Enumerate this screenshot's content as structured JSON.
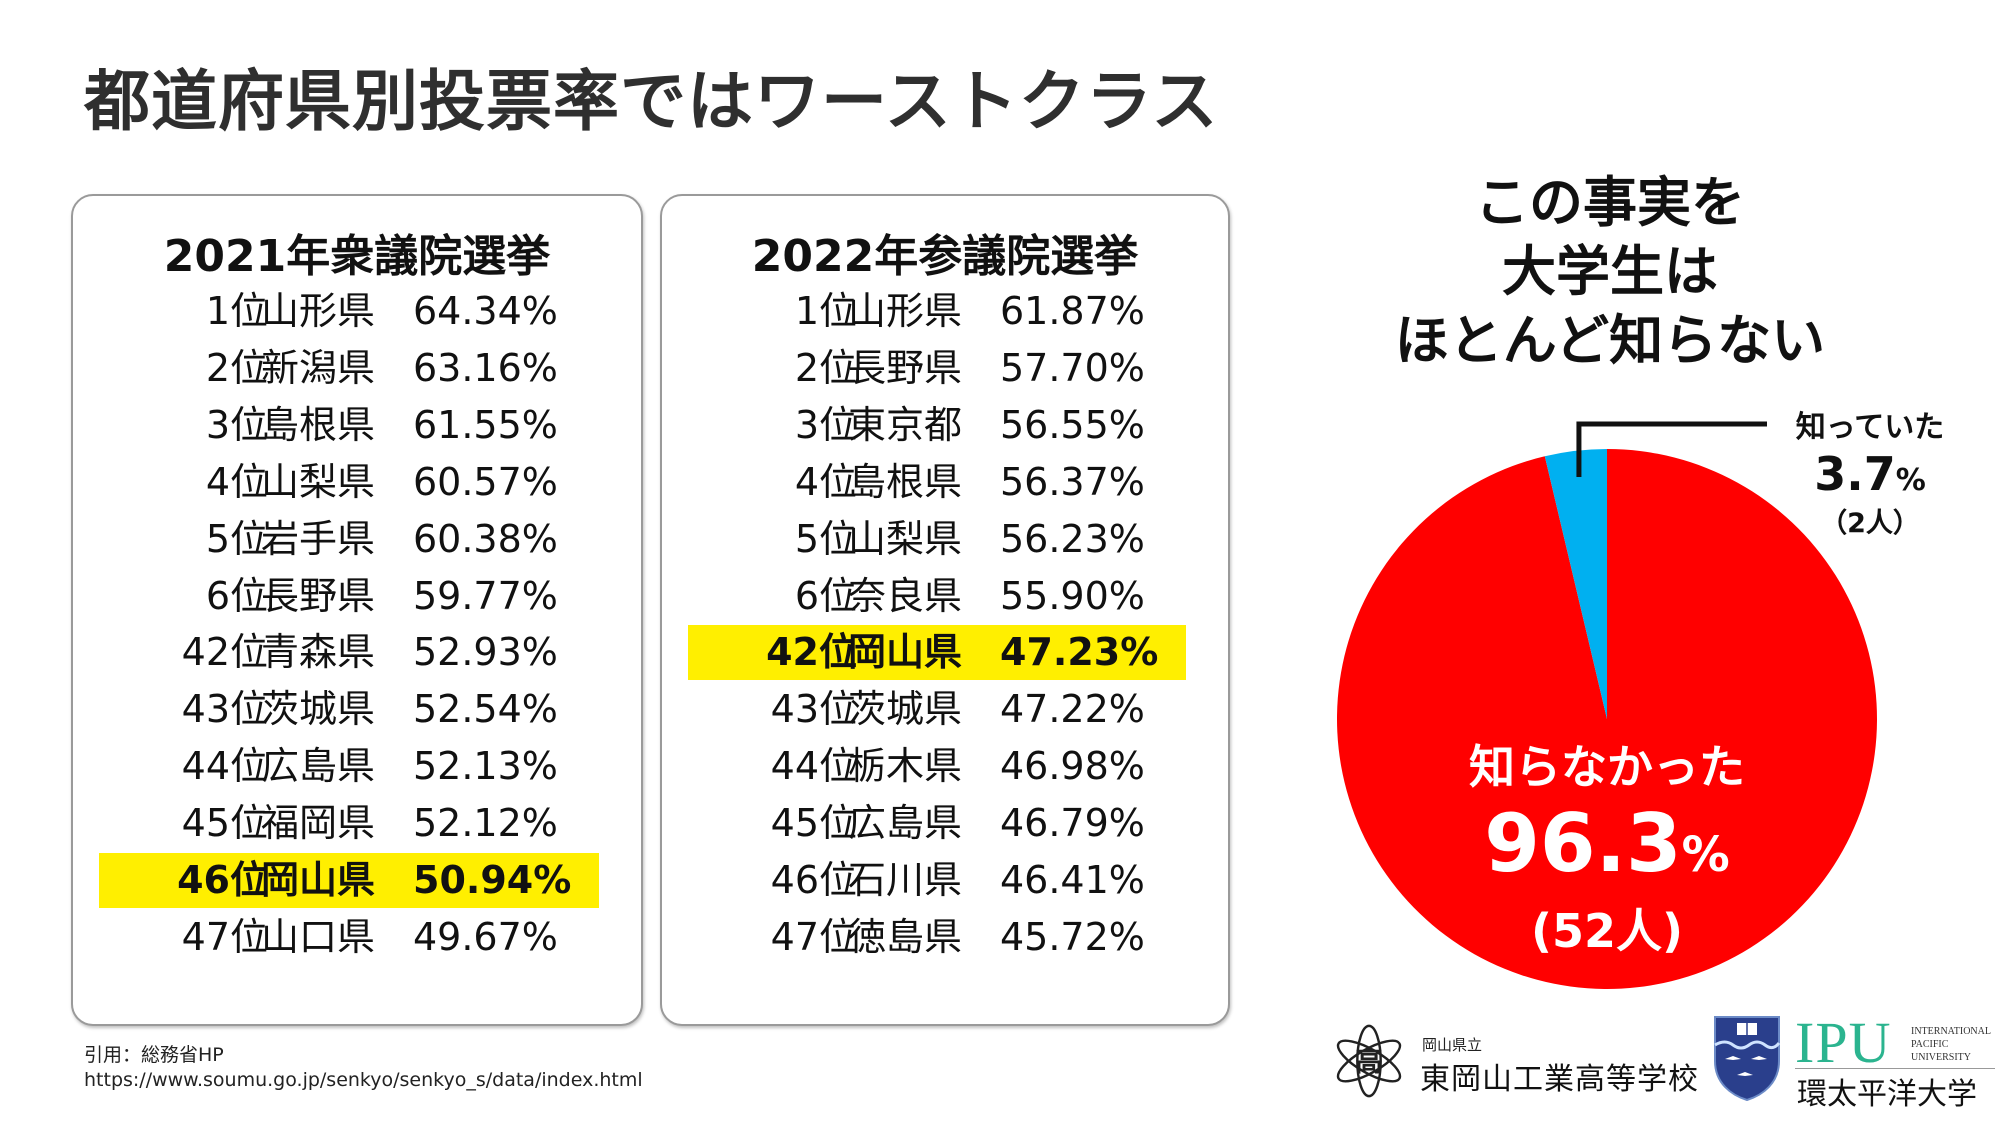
{
  "slide": {
    "title": "都道府県別投票率ではワーストクラス",
    "source_line1": "引用：総務省HP",
    "source_line2": "https://www.soumu.go.jp/senkyo/senkyo_s/data/index.html"
  },
  "tables": [
    {
      "title": "2021年衆議院選挙",
      "top": [
        {
          "rank": "1位",
          "pref": "山形県",
          "pct": "64.34%"
        },
        {
          "rank": "2位",
          "pref": "新潟県",
          "pct": "63.16%"
        },
        {
          "rank": "3位",
          "pref": "島根県",
          "pct": "61.55%"
        },
        {
          "rank": "4位",
          "pref": "山梨県",
          "pct": "60.57%"
        },
        {
          "rank": "5位",
          "pref": "岩手県",
          "pct": "60.38%"
        },
        {
          "rank": "6位",
          "pref": "長野県",
          "pct": "59.77%"
        }
      ],
      "bottom": [
        {
          "rank": "42位",
          "pref": "青森県",
          "pct": "52.93%",
          "highlight": false
        },
        {
          "rank": "43位",
          "pref": "茨城県",
          "pct": "52.54%",
          "highlight": false
        },
        {
          "rank": "44位",
          "pref": "広島県",
          "pct": "52.13%",
          "highlight": false
        },
        {
          "rank": "45位",
          "pref": "福岡県",
          "pct": "52.12%",
          "highlight": false
        },
        {
          "rank": "46位",
          "pref": "岡山県",
          "pct": "50.94%",
          "highlight": true
        },
        {
          "rank": "47位",
          "pref": "山口県",
          "pct": "49.67%",
          "highlight": false
        }
      ]
    },
    {
      "title": "2022年参議院選挙",
      "top": [
        {
          "rank": "1位",
          "pref": "山形県",
          "pct": "61.87%"
        },
        {
          "rank": "2位",
          "pref": "長野県",
          "pct": "57.70%"
        },
        {
          "rank": "3位",
          "pref": "東京都",
          "pct": "56.55%"
        },
        {
          "rank": "4位",
          "pref": "島根県",
          "pct": "56.37%"
        },
        {
          "rank": "5位",
          "pref": "山梨県",
          "pct": "56.23%"
        },
        {
          "rank": "6位",
          "pref": "奈良県",
          "pct": "55.90%"
        }
      ],
      "bottom": [
        {
          "rank": "42位",
          "pref": "岡山県",
          "pct": "47.23%",
          "highlight": true
        },
        {
          "rank": "43位",
          "pref": "茨城県",
          "pct": "47.22%",
          "highlight": false
        },
        {
          "rank": "44位",
          "pref": "栃木県",
          "pct": "46.98%",
          "highlight": false
        },
        {
          "rank": "45位",
          "pref": "広島県",
          "pct": "46.79%",
          "highlight": false
        },
        {
          "rank": "46位",
          "pref": "石川県",
          "pct": "46.41%",
          "highlight": false
        },
        {
          "rank": "47位",
          "pref": "徳島県",
          "pct": "45.72%",
          "highlight": false
        }
      ]
    }
  ],
  "highlight_color": "#ffef00",
  "chart_data": {
    "type": "pie",
    "title": "この事実を 大学生は ほとんど知らない",
    "title_lines": [
      "この事実を",
      "大学生は",
      "ほとんど知らない"
    ],
    "categories": [
      "知っていた",
      "知らなかった"
    ],
    "values": [
      3.7,
      96.3
    ],
    "counts": [
      2,
      52
    ],
    "value_labels": [
      "3.7",
      "96.3"
    ],
    "percent_sign": "%",
    "count_labels": [
      "（2人）",
      "(52人)"
    ],
    "colors": [
      "#00b0f0",
      "#ff0000"
    ],
    "start": "12 o'clock, first slice counter-clockwise",
    "legend": "none (direct labels)"
  },
  "logos": {
    "school_sub": "岡山県立",
    "school_name": "東岡山工業高等学校",
    "school_emblem_char": "高",
    "ipu_abbr": "IPU",
    "ipu_english": [
      "INTERNATIONAL",
      "PACIFIC",
      "UNIVERSITY"
    ],
    "ipu_japanese": "環太平洋大学"
  }
}
